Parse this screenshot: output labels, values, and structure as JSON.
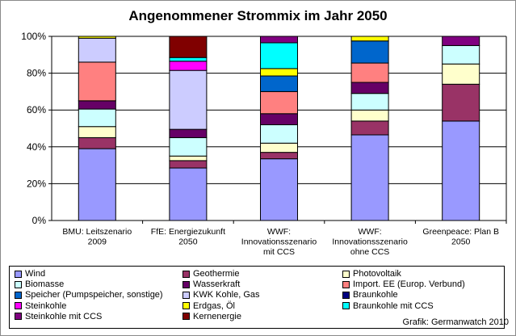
{
  "chart_data": {
    "type": "bar",
    "stacked": true,
    "percent": true,
    "title": "Angenommener Strommix im Jahr 2050",
    "ylim": [
      0,
      100
    ],
    "yticks": [
      "0%",
      "20%",
      "40%",
      "60%",
      "80%",
      "100%"
    ],
    "grid": true,
    "legend_position": "bottom",
    "categories": [
      [
        "BMU: Leitszenario",
        "2009"
      ],
      [
        "FfE: Energiezukunft",
        "2050"
      ],
      [
        "WWF:",
        "Innovationsszenario",
        "mit CCS"
      ],
      [
        "WWF:",
        "Innovationsszenario",
        "ohne CCS"
      ],
      [
        "Greenpeace: Plan B",
        "2050"
      ]
    ],
    "series": [
      {
        "name": "Wind",
        "color": "#9999ff",
        "values": [
          39,
          28.5,
          33.5,
          46.5,
          54
        ]
      },
      {
        "name": "Geothermie",
        "color": "#993366",
        "values": [
          6,
          4,
          3.5,
          7.5,
          20
        ]
      },
      {
        "name": "Photovoltaik",
        "color": "#ffffcc",
        "values": [
          6,
          2.5,
          5,
          6,
          11
        ]
      },
      {
        "name": "Biomasse",
        "color": "#ccffff",
        "values": [
          9.5,
          10,
          10,
          9,
          10
        ]
      },
      {
        "name": "Wasserkraft",
        "color": "#660066",
        "values": [
          4.5,
          4.5,
          6,
          6,
          0
        ]
      },
      {
        "name": "Import. EE (Europ. Verbund)",
        "color": "#ff8080",
        "values": [
          21,
          0,
          12,
          10.5,
          0
        ]
      },
      {
        "name": "Speicher (Pumpspeicher, sonstige)",
        "color": "#0066cc",
        "values": [
          0,
          0,
          8.5,
          12,
          0
        ]
      },
      {
        "name": "KWK Kohle, Gas",
        "color": "#ccccff",
        "values": [
          13,
          32,
          0,
          0,
          0
        ]
      },
      {
        "name": "Braunkohle",
        "color": "#000080",
        "values": [
          0,
          0,
          0,
          0,
          0
        ]
      },
      {
        "name": "Steinkohle",
        "color": "#ff00ff",
        "values": [
          0,
          5,
          0,
          0,
          0
        ]
      },
      {
        "name": "Erdgas, Öl",
        "color": "#ffff00",
        "values": [
          1,
          0,
          4,
          2.5,
          0
        ]
      },
      {
        "name": "Braunkohle mit CCS",
        "color": "#00ffff",
        "values": [
          0,
          2,
          14,
          0,
          0
        ]
      },
      {
        "name": "Steinkohle mit CCS",
        "color": "#800080",
        "values": [
          0,
          0,
          3.5,
          0,
          5
        ]
      },
      {
        "name": "Kernenergie",
        "color": "#800000",
        "values": [
          0,
          11.5,
          0,
          0,
          0
        ]
      }
    ]
  },
  "credit": "Grafik: Germanwatch 2010"
}
